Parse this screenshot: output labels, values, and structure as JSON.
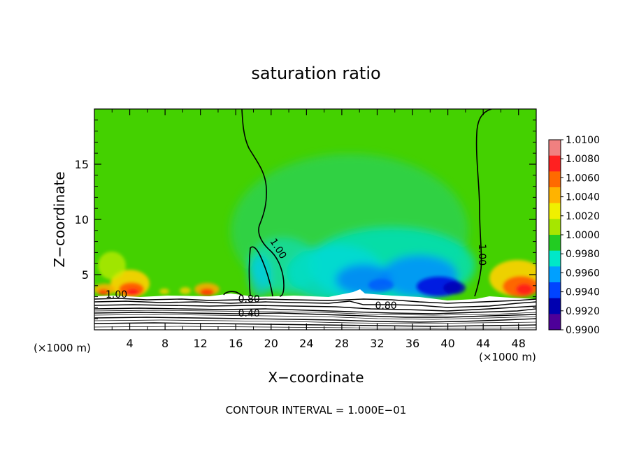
{
  "chart_data": {
    "type": "heatmap",
    "title": "saturation ratio",
    "xlabel": "X−coordinate",
    "ylabel": "Z−coordinate",
    "x_unit_left": "(×1000 m)",
    "x_unit_right": "(×1000 m)",
    "xlim": [
      0,
      50
    ],
    "ylim": [
      0,
      20
    ],
    "x_ticks": [
      4,
      8,
      12,
      16,
      20,
      24,
      28,
      32,
      36,
      40,
      44,
      48
    ],
    "x_tick_labels": [
      "4",
      "8",
      "12",
      "16",
      "20",
      "24",
      "28",
      "32",
      "36",
      "40",
      "44",
      "48"
    ],
    "y_ticks": [
      5,
      10,
      15
    ],
    "y_tick_labels": [
      "5",
      "10",
      "15"
    ],
    "colorbar": {
      "range": [
        0.99,
        1.01
      ],
      "levels": [
        1.01,
        1.008,
        1.006,
        1.004,
        1.002,
        1.0,
        0.998,
        0.996,
        0.994,
        0.992,
        0.99
      ],
      "labels": [
        "1.0100",
        "1.0080",
        "1.0060",
        "1.0040",
        "1.0020",
        "1.0000",
        "0.9980",
        "0.9960",
        "0.9940",
        "0.9920",
        "0.9900"
      ],
      "colors": [
        "#f08080",
        "#ff2020",
        "#ff6a00",
        "#ffb300",
        "#f0f000",
        "#a6e600",
        "#22cc22",
        "#00e8c8",
        "#00a0ff",
        "#0044ff",
        "#0000b0",
        "#4d0099"
      ]
    },
    "contour_labels": [
      {
        "text": "1.00",
        "x": 2.5,
        "z": 2.9
      },
      {
        "text": "1.00",
        "x": 20.5,
        "z": 7.2,
        "angle": 58
      },
      {
        "text": "1.00",
        "x": 43.5,
        "z": 6.8,
        "angle": 90
      },
      {
        "text": "0.80",
        "x": 17.5,
        "z": 2.5
      },
      {
        "text": "0.80",
        "x": 33.0,
        "z": 1.9
      },
      {
        "text": "0.40",
        "x": 17.5,
        "z": 1.2
      }
    ],
    "footnote": "CONTOUR INTERVAL = 1.000E−01"
  }
}
